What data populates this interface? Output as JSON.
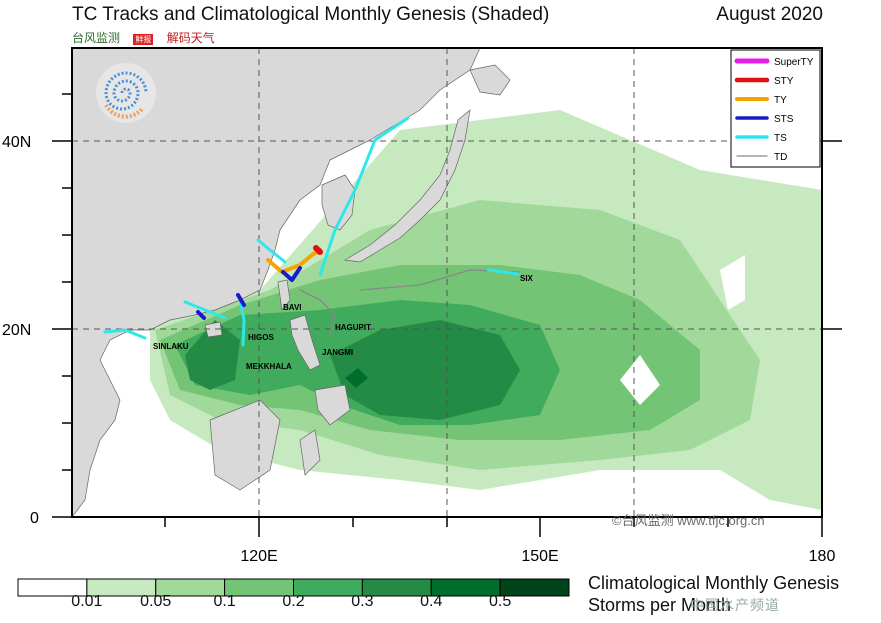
{
  "header": {
    "title": "TC Tracks and Climatological Monthly Genesis (Shaded)",
    "date": "August 2020",
    "brand_a": "台风监测",
    "brand_badge": "鲜报",
    "brand_b": "解码天气"
  },
  "axes": {
    "lat_labels": [
      "40N",
      "20N",
      "0"
    ],
    "lon_labels": [
      "120E",
      "150E",
      "180"
    ]
  },
  "legend": {
    "items": [
      {
        "label": "SuperTY",
        "color": "#e81ce8"
      },
      {
        "label": "STY",
        "color": "#dd1111"
      },
      {
        "label": "TY",
        "color": "#f5a300"
      },
      {
        "label": "STS",
        "color": "#1a1acc"
      },
      {
        "label": "TS",
        "color": "#2de8e8"
      },
      {
        "label": "TD",
        "color": "#888888"
      }
    ]
  },
  "storms": [
    "SIX",
    "BAVI",
    "HAGUPIT",
    "JANGMI",
    "HIGOS",
    "SINLAKU",
    "MEKKHALA"
  ],
  "colorbar": {
    "ticks": [
      "0.01",
      "0.05",
      "0.1",
      "0.2",
      "0.3",
      "0.4",
      "0.5"
    ],
    "colors": [
      "#ffffff",
      "#c7e9c0",
      "#a1d99b",
      "#74c476",
      "#41ab5d",
      "#238b45",
      "#006d2c",
      "#00441b"
    ],
    "title_line1": "Climatological Monthly Genesis",
    "title_line2": "Storms per Month"
  },
  "watermark": "©台风监测 www.tfjc.org.cn",
  "watermark2": "中国水产频道"
}
